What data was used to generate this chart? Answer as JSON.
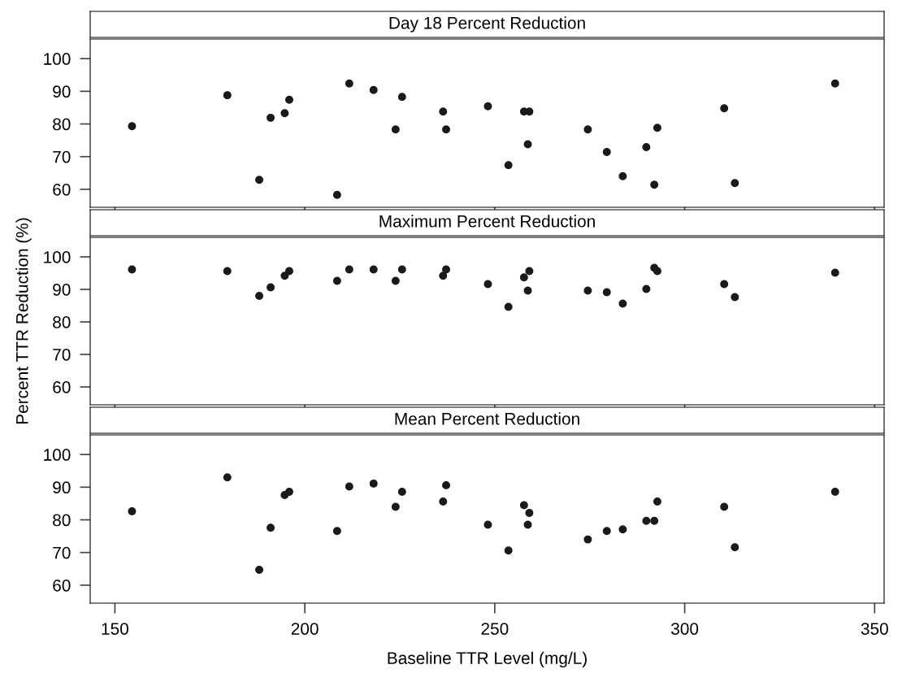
{
  "chart_data": [
    {
      "type": "scatter",
      "title": "Day 18 Percent Reduction",
      "marker": "circle",
      "grid": false,
      "legend": false,
      "tick_labels": "y",
      "xlim": [
        143.5,
        352.5
      ],
      "xticks": [
        150,
        200,
        250,
        300,
        350
      ],
      "ylim": [
        54.5,
        106
      ],
      "yticks": [
        60,
        70,
        80,
        90,
        100
      ],
      "x": [
        154.5,
        179.6,
        188.0,
        191.0,
        194.7,
        195.9,
        208.5,
        211.7,
        218.1,
        223.9,
        225.6,
        236.4,
        237.2,
        248.2,
        253.6,
        257.7,
        258.7,
        259.1,
        274.5,
        279.5,
        283.7,
        289.9,
        292.0,
        292.8,
        310.4,
        313.2,
        339.6
      ],
      "series": [
        {
          "color": "#1a1a1a",
          "values": [
            79.3,
            88.8,
            62.9,
            81.9,
            83.3,
            87.4,
            58.3,
            92.4,
            90.4,
            78.3,
            88.3,
            83.8,
            78.3,
            85.4,
            67.4,
            83.8,
            73.8,
            83.8,
            78.3,
            71.4,
            64.0,
            72.9,
            61.4,
            78.8,
            84.8,
            61.9,
            92.4
          ]
        }
      ]
    },
    {
      "type": "scatter",
      "title": "Maximum Percent Reduction",
      "ylabel": "Percent TTR Reduction (%)",
      "marker": "circle",
      "grid": false,
      "legend": false,
      "tick_labels": "y",
      "xlim": [
        143.5,
        352.5
      ],
      "xticks": [
        150,
        200,
        250,
        300,
        350
      ],
      "ylim": [
        54.5,
        106
      ],
      "yticks": [
        60,
        70,
        80,
        90,
        100
      ],
      "x": [
        154.5,
        179.6,
        188.0,
        191.0,
        194.7,
        195.9,
        208.5,
        211.7,
        218.1,
        223.9,
        225.6,
        236.4,
        237.2,
        248.2,
        253.6,
        257.7,
        258.7,
        259.1,
        274.5,
        279.5,
        283.7,
        289.9,
        292.0,
        292.8,
        310.4,
        313.2,
        339.6
      ],
      "series": [
        {
          "color": "#1a1a1a",
          "values": [
            96.1,
            95.6,
            88.0,
            90.6,
            94.2,
            95.6,
            92.6,
            96.1,
            96.1,
            92.6,
            96.1,
            94.2,
            96.1,
            91.6,
            84.6,
            93.7,
            89.6,
            95.6,
            89.6,
            89.1,
            85.6,
            90.1,
            96.6,
            95.6,
            91.6,
            87.6,
            95.1
          ]
        }
      ]
    },
    {
      "type": "scatter",
      "title": "Mean Percent Reduction",
      "xlabel": "Baseline TTR Level (mg/L)",
      "marker": "circle",
      "grid": false,
      "legend": false,
      "xlim": [
        143.5,
        352.5
      ],
      "xticks": [
        150,
        200,
        250,
        300,
        350
      ],
      "ylim": [
        54.5,
        106
      ],
      "yticks": [
        60,
        70,
        80,
        90,
        100
      ],
      "x": [
        154.5,
        179.6,
        188.0,
        191.0,
        194.7,
        195.9,
        208.5,
        211.7,
        218.1,
        223.9,
        225.6,
        236.4,
        237.2,
        248.2,
        253.6,
        257.7,
        258.7,
        259.1,
        274.5,
        279.5,
        283.7,
        289.9,
        292.0,
        292.8,
        310.4,
        313.2,
        339.6
      ],
      "series": [
        {
          "color": "#1a1a1a",
          "values": [
            82.6,
            93.0,
            64.7,
            77.6,
            87.6,
            88.6,
            76.6,
            90.2,
            91.1,
            84.0,
            88.6,
            85.6,
            90.6,
            78.5,
            70.6,
            84.5,
            78.5,
            82.1,
            74.0,
            76.6,
            77.1,
            79.7,
            79.7,
            85.6,
            84.0,
            71.6,
            88.6
          ]
        }
      ]
    }
  ]
}
